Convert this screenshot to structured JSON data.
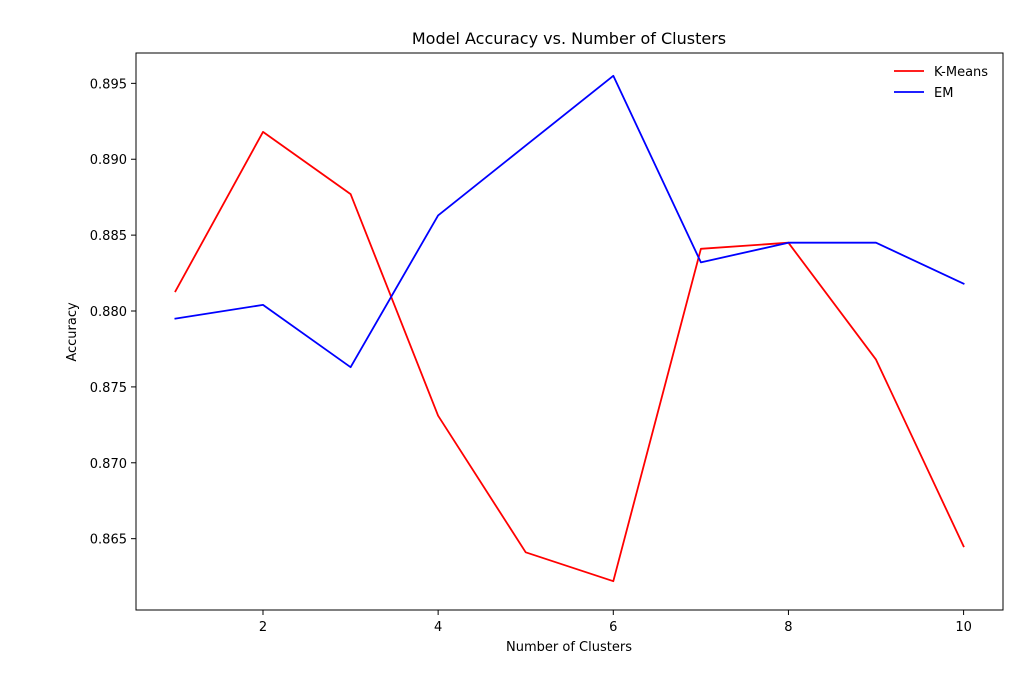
{
  "chart_data": {
    "type": "line",
    "title": "Model Accuracy vs. Number of Clusters",
    "xlabel": "Number of Clusters",
    "ylabel": "Accuracy",
    "x": [
      1,
      2,
      3,
      4,
      5,
      6,
      7,
      8,
      9,
      10
    ],
    "xlim": [
      0.55,
      10.45
    ],
    "ylim": [
      0.8603,
      0.897
    ],
    "xticks": [
      2,
      4,
      6,
      8,
      10
    ],
    "yticks": [
      0.865,
      0.87,
      0.875,
      0.88,
      0.885,
      0.89,
      0.895
    ],
    "grid": false,
    "legend_position": "top-right",
    "series": [
      {
        "name": "K-Means",
        "color": "#ff0000",
        "values": [
          0.8813,
          0.8918,
          0.8877,
          0.8731,
          0.8641,
          0.8622,
          0.8841,
          0.8845,
          0.8768,
          0.8645
        ]
      },
      {
        "name": "EM",
        "color": "#0000ff",
        "values": [
          0.8795,
          0.8804,
          0.8763,
          0.8863,
          0.8909,
          0.8955,
          0.8832,
          0.8845,
          0.8845,
          0.8818
        ]
      }
    ]
  }
}
